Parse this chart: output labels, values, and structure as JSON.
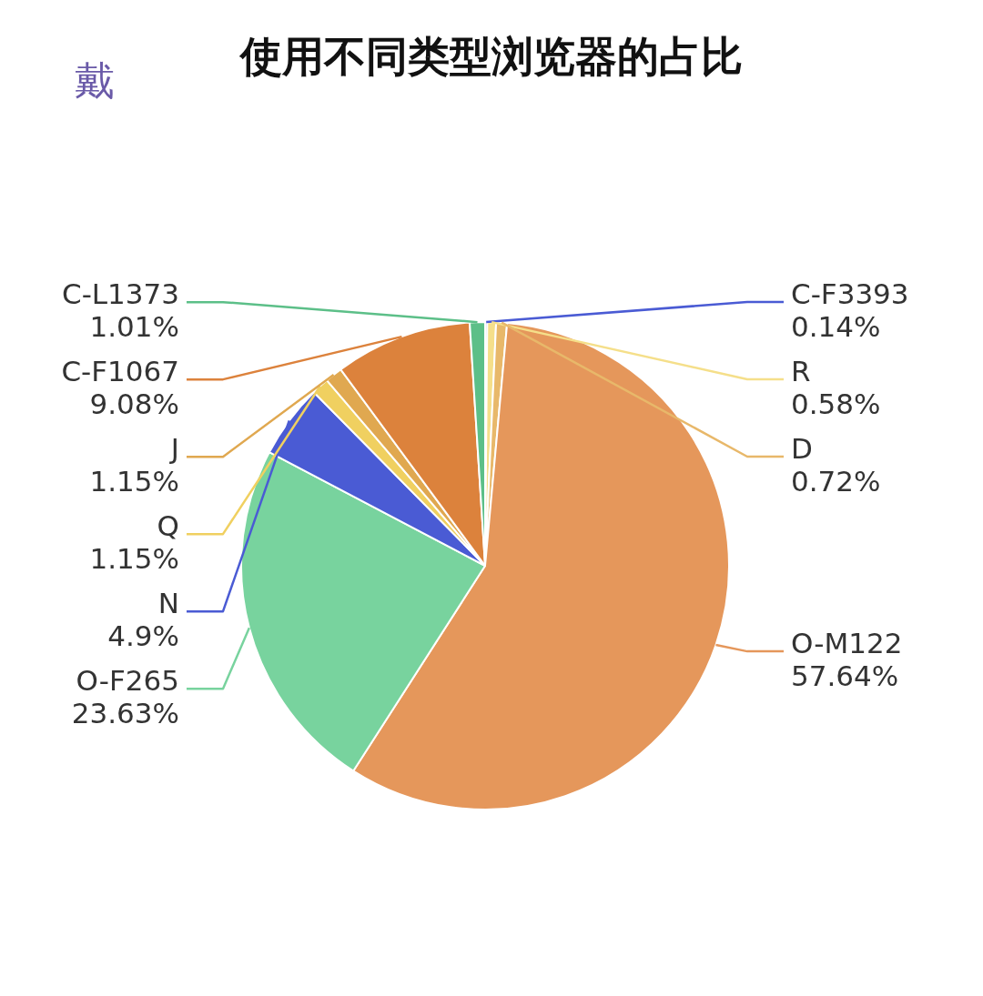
{
  "chart_data": {
    "type": "pie",
    "title": "使用不同类型浏览器的占比",
    "annotations": [
      "戴"
    ],
    "categories": [
      "C-F3393",
      "R",
      "D",
      "O-M122",
      "O-F265",
      "N",
      "Q",
      "J",
      "C-F1067",
      "C-L1373"
    ],
    "values": [
      0.14,
      0.58,
      0.72,
      57.64,
      23.63,
      4.9,
      1.15,
      1.15,
      9.08,
      1.01
    ],
    "value_labels": [
      "0.14%",
      "0.58%",
      "0.72%",
      "57.64%",
      "23.63%",
      "4.9%",
      "1.15%",
      "1.15%",
      "9.08%",
      "1.01%"
    ],
    "colors": [
      "#4a5bd4",
      "#f5df8a",
      "#e8b86a",
      "#e5975b",
      "#78d39e",
      "#4a5bd4",
      "#f0d060",
      "#e0a850",
      "#dc823c",
      "#5cbf88"
    ]
  }
}
